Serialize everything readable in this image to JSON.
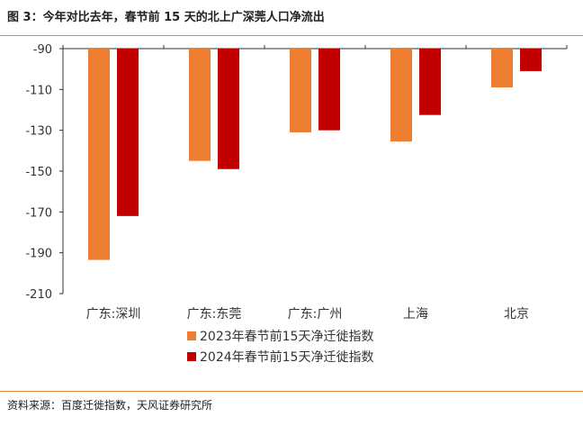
{
  "title": "图 3：今年对比去年，春节前 15 天的北上广深莞人口净流出",
  "source": "资料来源：百度迁徙指数，天风证券研究所",
  "colors": {
    "series1": "#ED7D31",
    "series2": "#C00000",
    "accent": "#E8873A"
  },
  "chart_data": {
    "type": "bar",
    "categories": [
      "广东:深圳",
      "广东:东莞",
      "广东:广州",
      "上海",
      "北京"
    ],
    "series": [
      {
        "name": "2023年春节前15天净迁徙指数",
        "values": [
          -193.5,
          -145,
          -131,
          -135.5,
          -109
        ]
      },
      {
        "name": "2024年春节前15天净迁徙指数",
        "values": [
          -172,
          -149,
          -130,
          -122.5,
          -101
        ]
      }
    ],
    "yticks": [
      "-90",
      "-110",
      "-130",
      "-150",
      "-170",
      "-190",
      "-210"
    ],
    "ylim": [
      -210,
      -90
    ],
    "legend_position": "bottom",
    "grid": false
  }
}
